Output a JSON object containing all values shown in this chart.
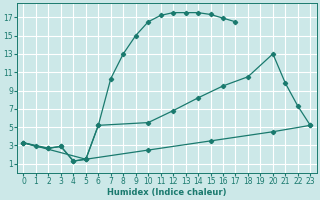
{
  "xlabel": "Humidex (Indice chaleur)",
  "xlim": [
    -0.5,
    23.5
  ],
  "ylim": [
    0,
    18.5
  ],
  "xticks": [
    0,
    1,
    2,
    3,
    4,
    5,
    6,
    7,
    8,
    9,
    10,
    11,
    12,
    13,
    14,
    15,
    16,
    17,
    18,
    19,
    20,
    21,
    22,
    23
  ],
  "yticks": [
    1,
    3,
    5,
    7,
    9,
    11,
    13,
    15,
    17
  ],
  "bg_color": "#cce8e8",
  "grid_color": "#ffffff",
  "line_color": "#1a7a6e",
  "curve1_x": [
    0,
    1,
    2,
    3,
    4,
    5,
    6,
    7,
    8,
    9,
    10,
    11,
    12,
    13,
    14,
    15,
    16,
    17
  ],
  "curve1_y": [
    3.3,
    2.9,
    2.7,
    2.9,
    1.3,
    1.5,
    5.2,
    10.3,
    13.0,
    15.0,
    16.5,
    17.2,
    17.5,
    17.5,
    17.5,
    17.3,
    16.9,
    16.5
  ],
  "curve2_x": [
    0,
    2,
    3,
    4,
    5,
    6,
    10,
    12,
    14,
    16,
    18,
    20,
    21,
    22,
    23
  ],
  "curve2_y": [
    3.3,
    2.7,
    2.9,
    1.3,
    1.5,
    5.2,
    5.5,
    6.8,
    8.2,
    9.5,
    10.5,
    13.0,
    9.8,
    7.3,
    5.2
  ],
  "curve3_x": [
    0,
    5,
    10,
    15,
    20,
    23
  ],
  "curve3_y": [
    3.3,
    1.5,
    2.5,
    3.5,
    4.5,
    5.2
  ]
}
